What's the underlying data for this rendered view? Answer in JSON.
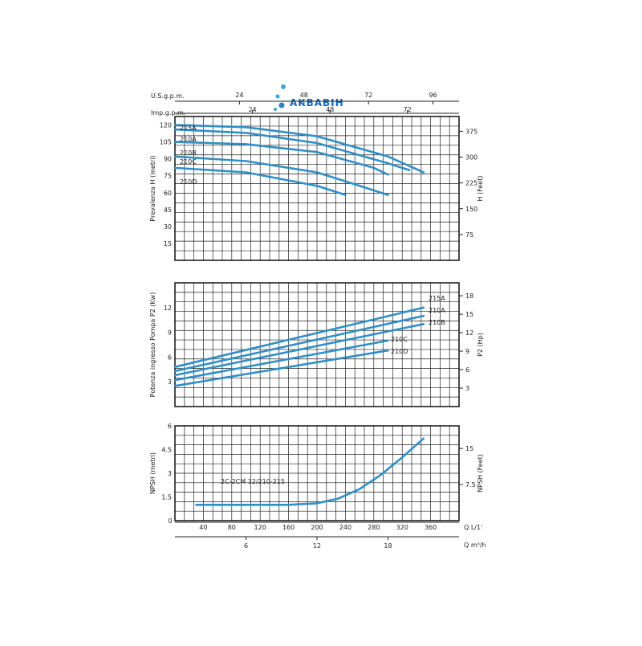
{
  "logo": {
    "text": "AKBABIH",
    "color": "#1a66b5"
  },
  "colors": {
    "curve": "#2f8fc7",
    "grid": "#222222",
    "panel_border": "#111111"
  },
  "top_axes": {
    "usgpm": {
      "label": "U.S.g.p.m.",
      "ticks": [
        24,
        48,
        72,
        96
      ],
      "lpm_factor": 3.785
    },
    "impgpm": {
      "label": "Imp.g.p.m.",
      "ticks": [
        24,
        48,
        72
      ],
      "lpm_factor": 4.546
    }
  },
  "bottom_axes": {
    "q_lmin": {
      "label": "Q L/1'",
      "ticks": [
        40,
        80,
        120,
        160,
        200,
        240,
        280,
        320,
        360
      ]
    },
    "q_m3h": {
      "label": "Q m³/h",
      "ticks": [
        6,
        12,
        18
      ]
    }
  },
  "chart_data": [
    {
      "type": "line",
      "name": "head",
      "xlim": [
        0,
        400
      ],
      "ylim": [
        0,
        127.5
      ],
      "ylabel": "Prevalenza H (metri)",
      "y2label": "H (Feet)",
      "yticks": [
        15,
        30,
        45,
        60,
        75,
        90,
        105,
        120
      ],
      "y2ticks": [
        75,
        150,
        225,
        300,
        375
      ],
      "grid": true,
      "series": [
        {
          "name": "215A",
          "x": [
            0,
            100,
            200,
            300,
            350
          ],
          "y": [
            120,
            118,
            110,
            92,
            78
          ]
        },
        {
          "name": "210A",
          "x": [
            0,
            100,
            200,
            300,
            330
          ],
          "y": [
            116,
            113,
            104,
            86,
            80
          ]
        },
        {
          "name": "210B",
          "x": [
            0,
            100,
            200,
            280,
            300
          ],
          "y": [
            105,
            103,
            96,
            82,
            76
          ]
        },
        {
          "name": "210C",
          "x": [
            0,
            100,
            200,
            260,
            300
          ],
          "y": [
            92,
            88,
            78,
            66,
            58
          ]
        },
        {
          "name": "210D",
          "x": [
            0,
            100,
            200,
            240
          ],
          "y": [
            82,
            78,
            66,
            58
          ]
        }
      ]
    },
    {
      "type": "line",
      "name": "power",
      "xlim": [
        0,
        400
      ],
      "ylim": [
        0,
        15
      ],
      "ylabel": "Potenza ingresso Pompa P2 (Kw)",
      "y2label": "P2 (Hp)",
      "yticks": [
        3,
        6,
        9,
        12
      ],
      "y2ticks": [
        3,
        6,
        9,
        12,
        15,
        18
      ],
      "grid": true,
      "series": [
        {
          "name": "215A",
          "x": [
            0,
            350
          ],
          "y": [
            4.8,
            12.0
          ]
        },
        {
          "name": "210A",
          "x": [
            0,
            350
          ],
          "y": [
            4.3,
            11.0
          ]
        },
        {
          "name": "210B",
          "x": [
            0,
            350
          ],
          "y": [
            3.8,
            10.0
          ]
        },
        {
          "name": "210C",
          "x": [
            0,
            300
          ],
          "y": [
            3.2,
            8.0
          ]
        },
        {
          "name": "210D",
          "x": [
            0,
            300
          ],
          "y": [
            2.5,
            6.8
          ]
        }
      ]
    },
    {
      "type": "line",
      "name": "npsh",
      "xlim": [
        0,
        400
      ],
      "ylim": [
        0,
        6
      ],
      "ylabel": "NPSH (metri)",
      "y2label": "NPSH (Feet)",
      "yticks": [
        1.5,
        3,
        4.5,
        6
      ],
      "y2ticks": [
        7.5,
        15
      ],
      "grid": true,
      "series": [
        {
          "name": "2C-2CM 32/210-215",
          "x": [
            30,
            100,
            160,
            200,
            230,
            260,
            290,
            320,
            350
          ],
          "y": [
            1.0,
            1.0,
            1.0,
            1.1,
            1.4,
            2.0,
            2.9,
            4.0,
            5.2
          ]
        }
      ]
    }
  ]
}
